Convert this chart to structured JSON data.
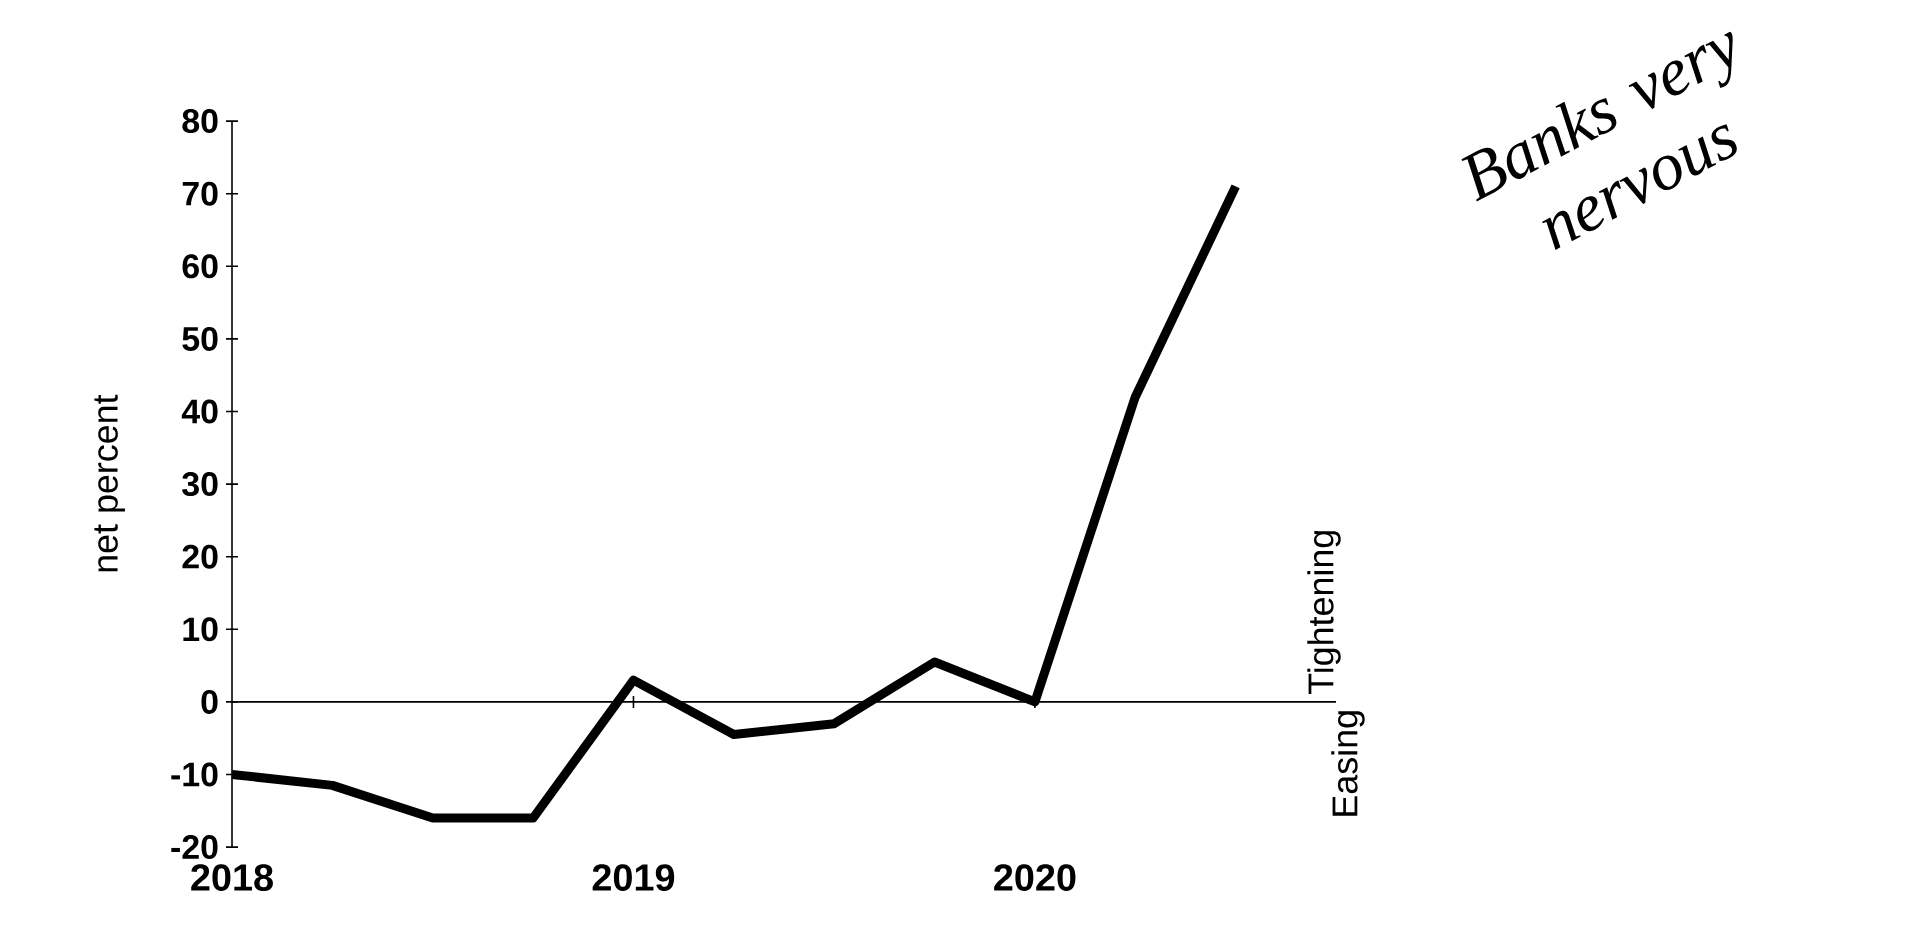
{
  "chart_data": {
    "type": "line",
    "ylabel": "net percent",
    "annotations": [
      "Tightening",
      "Easing",
      "Banks very nervous"
    ],
    "x": [
      2018,
      2018.25,
      2018.5,
      2018.75,
      2019,
      2019.25,
      2019.5,
      2019.75,
      2020,
      2020.25,
      2020.5
    ],
    "series": [
      {
        "color": "#000000",
        "values": [
          -10,
          -11.5,
          -16,
          -16,
          3,
          -4.5,
          -3,
          5.5,
          0,
          42,
          71
        ]
      }
    ],
    "xlim": [
      2018,
      2020.75
    ],
    "xticks": [
      2018,
      2019,
      2020
    ],
    "ylim": [
      -20,
      80
    ],
    "yticks": [
      -20,
      -10,
      0,
      10,
      20,
      30,
      40,
      50,
      60,
      70,
      80
    ],
    "marker": "none",
    "line_style": "solid"
  }
}
